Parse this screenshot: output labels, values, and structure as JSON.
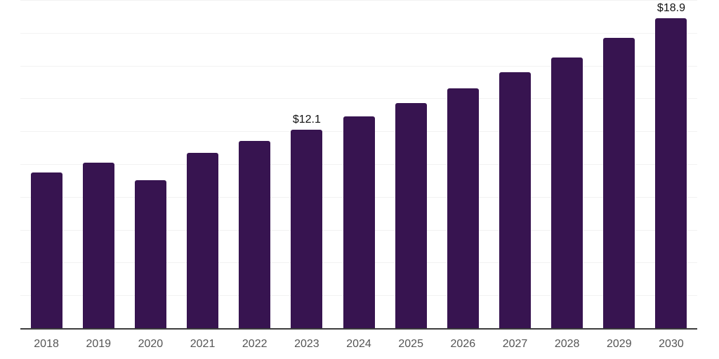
{
  "chart_data": {
    "type": "bar",
    "title": "",
    "xlabel": "",
    "ylabel": "",
    "categories": [
      "2018",
      "2019",
      "2020",
      "2021",
      "2022",
      "2023",
      "2024",
      "2025",
      "2026",
      "2027",
      "2028",
      "2029",
      "2030"
    ],
    "values": [
      9.5,
      10.1,
      9.0,
      10.7,
      11.4,
      12.1,
      12.9,
      13.7,
      14.6,
      15.6,
      16.5,
      17.7,
      18.9
    ],
    "value_labels": [
      "",
      "",
      "",
      "",
      "",
      "$12.1",
      "",
      "",
      "",
      "",
      "",
      "",
      "$18.9"
    ],
    "ylim": [
      0,
      20
    ],
    "gridline_step": 2,
    "grid": true,
    "legend": "none",
    "colors": {
      "bar": "#371450",
      "gridline": "#f2f2f2",
      "axis_line": "#3d3d3d",
      "tick_label": "#555555",
      "value_label": "#111111"
    }
  }
}
